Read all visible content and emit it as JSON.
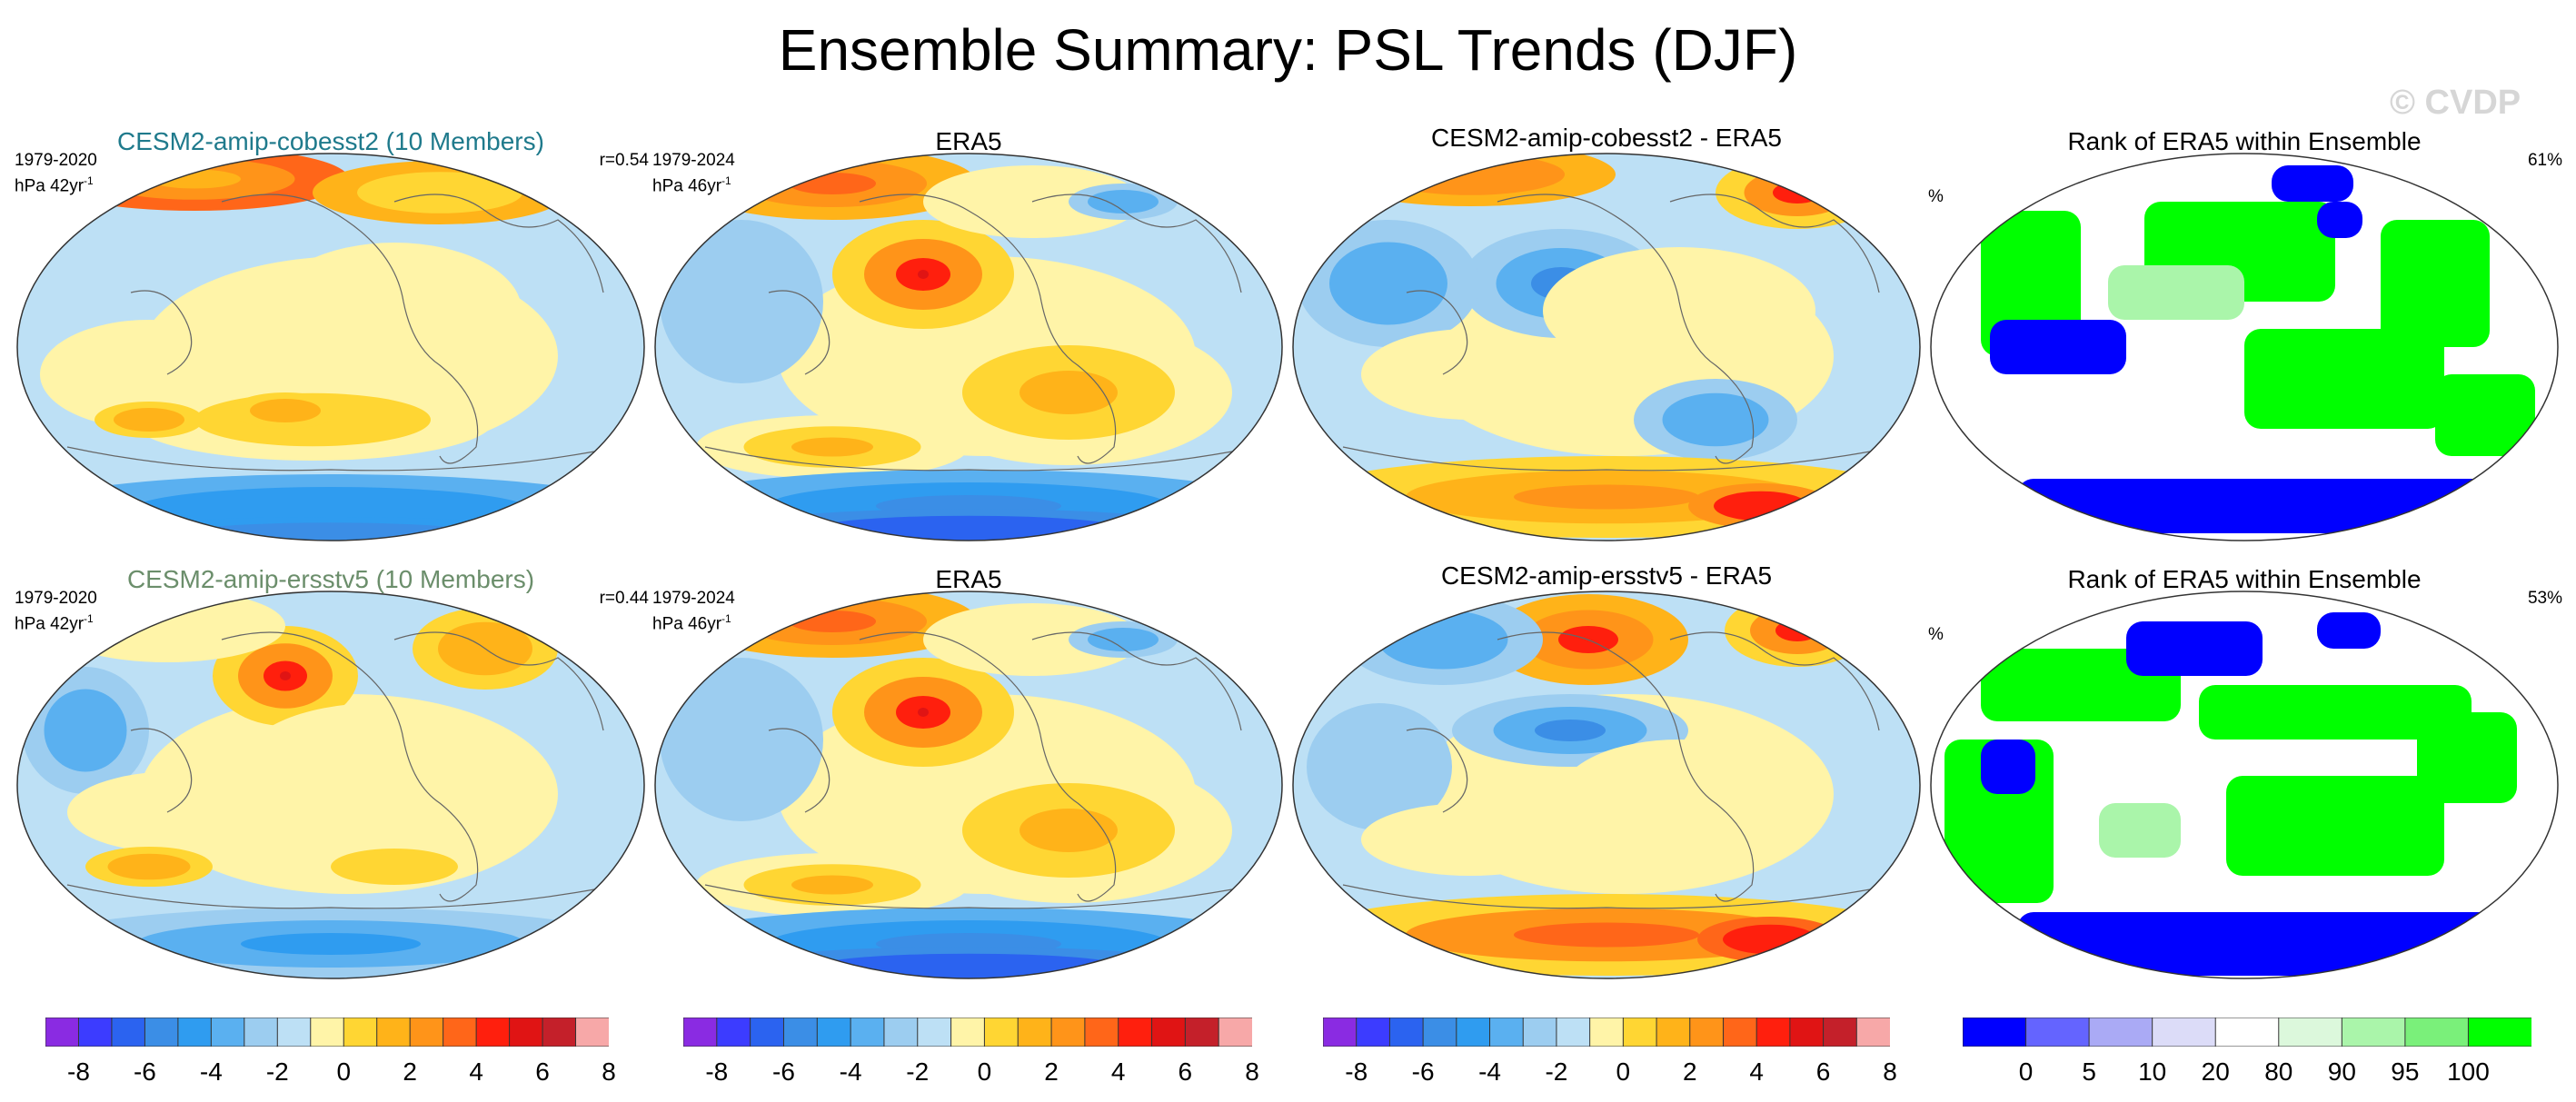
{
  "title": "Ensemble Summary: PSL Trends (DJF)",
  "watermark": "© CVDP",
  "colors": {
    "model_title_1": "#1f7a8c",
    "model_title_2": "#6b8e6b",
    "trend_palette": [
      "#8a2be2",
      "#3c3cff",
      "#2b63f0",
      "#3b8ee6",
      "#2f9cf0",
      "#5ab0f0",
      "#9ccdf0",
      "#bde0f5",
      "#fff4a8",
      "#ffd633",
      "#ffb319",
      "#ff9419",
      "#ff6619",
      "#ff1f0d",
      "#e01414",
      "#c4202a",
      "#f7a8a8"
    ],
    "rank_palette": [
      "#0000ff",
      "#6464ff",
      "#aaaaf5",
      "#dcdcf8",
      "#ffffff",
      "#dcf8dc",
      "#aaf5aa",
      "#7af07a",
      "#00ff00"
    ]
  },
  "panels": [
    {
      "title": "CESM2-amip-cobesst2 (10 Members)",
      "period": "1979-2020",
      "units": "hPa 42yr",
      "units_exp": "-1",
      "stat": "r=0.54",
      "kind": "trend",
      "variant": "model1"
    },
    {
      "title": "ERA5",
      "period": "1979-2024",
      "units": "hPa 46yr",
      "units_exp": "-1",
      "stat": "",
      "kind": "trend",
      "variant": "obs"
    },
    {
      "title": "CESM2-amip-cobesst2 - ERA5",
      "period": "",
      "units": "",
      "units_exp": "",
      "stat": "",
      "kind": "trend",
      "variant": "diff1"
    },
    {
      "title": "Rank of ERA5 within Ensemble",
      "period": "%",
      "units": "",
      "units_exp": "",
      "stat": "61%",
      "kind": "rank",
      "variant": "rank1"
    },
    {
      "title": "CESM2-amip-ersstv5 (10 Members)",
      "period": "1979-2020",
      "units": "hPa 42yr",
      "units_exp": "-1",
      "stat": "r=0.44",
      "kind": "trend",
      "variant": "model2"
    },
    {
      "title": "ERA5",
      "period": "1979-2024",
      "units": "hPa 46yr",
      "units_exp": "-1",
      "stat": "",
      "kind": "trend",
      "variant": "obs"
    },
    {
      "title": "CESM2-amip-ersstv5 - ERA5",
      "period": "",
      "units": "",
      "units_exp": "",
      "stat": "",
      "kind": "trend",
      "variant": "diff2"
    },
    {
      "title": "Rank of ERA5 within Ensemble",
      "period": "%",
      "units": "",
      "units_exp": "",
      "stat": "53%",
      "kind": "rank",
      "variant": "rank2"
    }
  ],
  "trend_colorbar": {
    "ticks": [
      "-8",
      "-6",
      "-4",
      "-2",
      "0",
      "2",
      "4",
      "6",
      "8"
    ]
  },
  "rank_colorbar": {
    "ticks": [
      "0",
      "5",
      "10",
      "20",
      "80",
      "90",
      "95",
      "100"
    ]
  }
}
